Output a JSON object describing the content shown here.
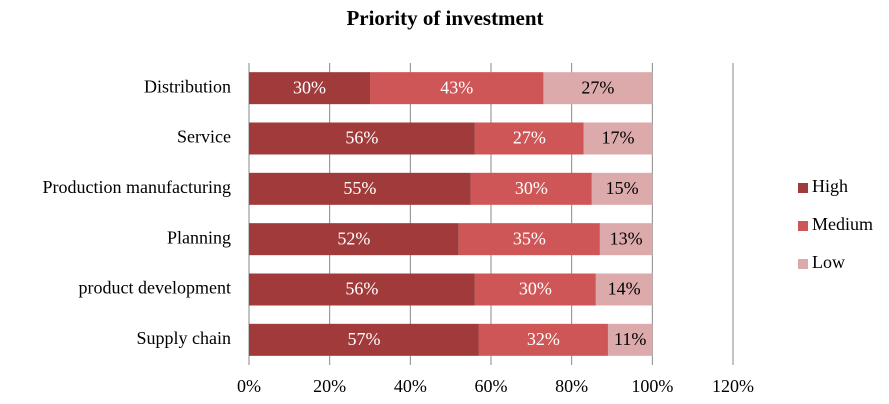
{
  "chart_data": {
    "type": "stacked_barh",
    "title": "Priority of investment",
    "categories": [
      "Distribution",
      "Service",
      "Production manufacturing",
      "Planning",
      "product development",
      "Supply chain"
    ],
    "series": [
      {
        "name": "High",
        "color": "#a13b3b",
        "values": [
          30,
          56,
          55,
          52,
          56,
          57
        ],
        "value_labels": [
          "30%",
          "56%",
          "55%",
          "52%",
          "56%",
          "57%"
        ]
      },
      {
        "name": "Medium",
        "color": "#cf5656",
        "values": [
          43,
          27,
          30,
          35,
          30,
          32
        ],
        "value_labels": [
          "43%",
          "27%",
          "30%",
          "35%",
          "30%",
          "32%"
        ]
      },
      {
        "name": "Low",
        "color": "#dcaaaa",
        "values": [
          27,
          17,
          15,
          13,
          14,
          11
        ],
        "value_labels": [
          "27%",
          "17%",
          "15%",
          "13%",
          "14%",
          "11%"
        ]
      }
    ],
    "xlim": [
      0,
      120
    ],
    "xticks": [
      {
        "value": 0,
        "label": "0%"
      },
      {
        "value": 20,
        "label": "20%"
      },
      {
        "value": 40,
        "label": "40%"
      },
      {
        "value": 60,
        "label": "60%"
      },
      {
        "value": 80,
        "label": "80%"
      },
      {
        "value": 100,
        "label": "100%"
      },
      {
        "value": 120,
        "label": "120%"
      }
    ],
    "grid": true,
    "legend": "right"
  }
}
